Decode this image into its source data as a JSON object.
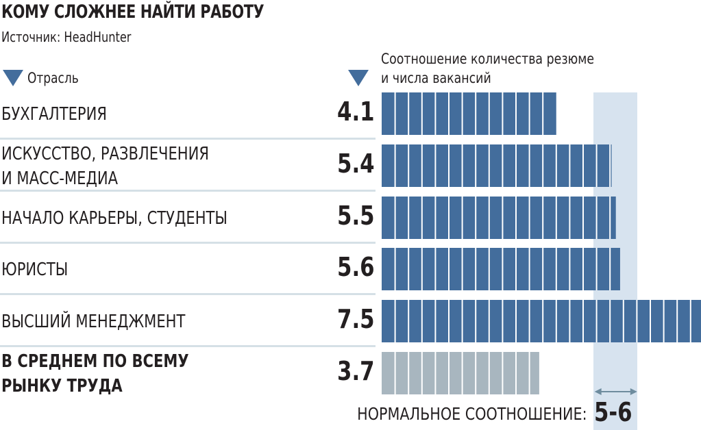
{
  "chart_data": {
    "type": "bar",
    "orientation": "horizontal",
    "title": "КОМУ СЛОЖНЕЕ НАЙТИ РАБОТУ",
    "subtitle": "Источник: HeadHunter",
    "category_header": "Отрасль",
    "value_header_line1": "Соотношение количества резюме",
    "value_header_line2": "и числа вакансий",
    "xlim": [
      0,
      7.5
    ],
    "categories": [
      {
        "line1": "БУХГАЛТЕРИЯ",
        "line2": "",
        "value": 4.1,
        "label": "4.1",
        "highlight": false
      },
      {
        "line1": "ИСКУССТВО, РАЗВЛЕЧЕНИЯ",
        "line2": "И МАСС-МЕДИА",
        "value": 5.4,
        "label": "5.4",
        "highlight": false
      },
      {
        "line1": "НАЧАЛО КАРЬЕРЫ, СТУДЕНТЫ",
        "line2": "",
        "value": 5.5,
        "label": "5.5",
        "highlight": false
      },
      {
        "line1": "ЮРИСТЫ",
        "line2": "",
        "value": 5.6,
        "label": "5.6",
        "highlight": false
      },
      {
        "line1": "ВЫСШИЙ МЕНЕДЖМЕНТ",
        "line2": "",
        "value": 7.5,
        "label": "7.5",
        "highlight": false
      },
      {
        "line1": "В СРЕДНЕМ ПО ВСЕМУ",
        "line2": "РЫНКУ ТРУДА",
        "value": 3.7,
        "label": "3.7",
        "highlight": true
      }
    ],
    "normal_range": [
      5,
      6
    ],
    "normal_label": "НОРМАЛЬНОЕ СООТНОШЕНИЕ:",
    "normal_value": "5-6",
    "colors": {
      "bar": "#436d9c",
      "average": "#a8b6bf",
      "band": "#d7e3ef",
      "arrow": "#6e8c9e"
    }
  }
}
